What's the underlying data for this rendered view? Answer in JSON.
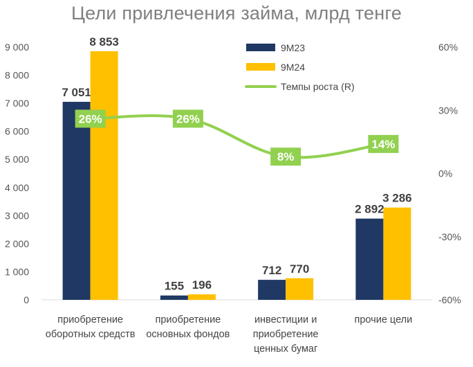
{
  "chart_data": {
    "type": "bar",
    "title": "Цели привлечения займа, млрд тенге",
    "categories": [
      [
        "приобретение",
        "оборотных средств"
      ],
      [
        "приобретение",
        "основных фондов"
      ],
      [
        "инвестиции и",
        "приобретение",
        "ценных бумаг"
      ],
      [
        "прочие цели"
      ]
    ],
    "series": [
      {
        "name": "9M23",
        "values": [
          7051,
          155,
          712,
          2892
        ],
        "labels": [
          "7 051",
          "155",
          "712",
          "2 892"
        ],
        "color": "#1f3864"
      },
      {
        "name": "9M24",
        "values": [
          8853,
          196,
          770,
          3286
        ],
        "labels": [
          "8 853",
          "196",
          "770",
          "3 286"
        ],
        "color": "#ffc000"
      }
    ],
    "growth": {
      "name": "Темпы роста (R)",
      "values": [
        26,
        26,
        8,
        14
      ],
      "labels": [
        "26%",
        "26%",
        "8%",
        "14%"
      ],
      "color": "#92d050"
    },
    "ylim": [
      0,
      9000
    ],
    "yticks": [
      0,
      1000,
      2000,
      3000,
      4000,
      5000,
      6000,
      7000,
      8000,
      9000
    ],
    "ytick_labels": [
      "0",
      "1 000",
      "2 000",
      "3 000",
      "4 000",
      "5 000",
      "6 000",
      "7 000",
      "8 000",
      "9 000"
    ],
    "y2lim": [
      -60,
      60
    ],
    "y2ticks": [
      -60,
      -30,
      0,
      30,
      60
    ],
    "y2tick_labels": [
      "-60%",
      "-30%",
      "0%",
      "30%",
      "60%"
    ],
    "grid": false,
    "legend_position": "top-right"
  }
}
